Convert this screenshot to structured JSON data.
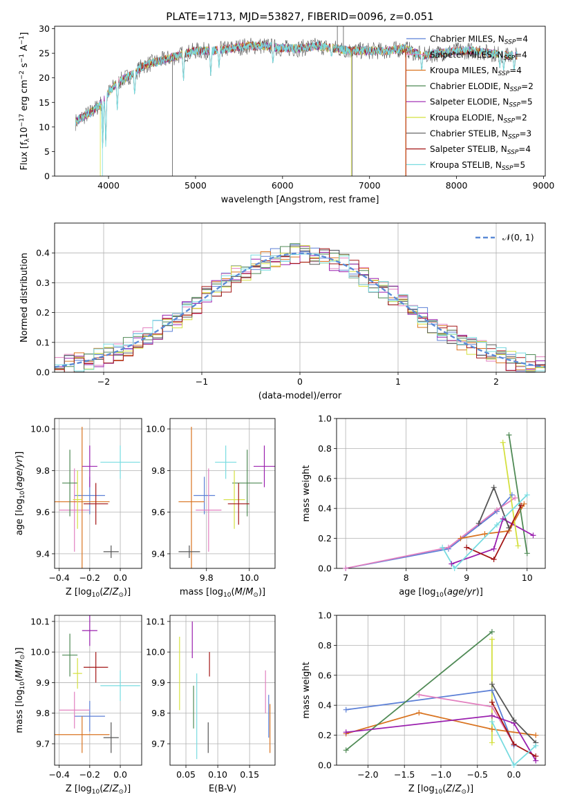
{
  "figure": {
    "title": "PLATE=1713, MJD=53827, FIBERID=0096, z=0.051"
  },
  "series_colors": {
    "Chabrier MILES": "#5b7fd6",
    "Salpeter MILES": "#e27fbf",
    "Kroupa MILES": "#d9731f",
    "Chabrier ELODIE": "#4f8a55",
    "Salpeter ELODIE": "#9a1fae",
    "Kroupa ELODIE": "#d4e03f",
    "Chabrier STELIB": "#555555",
    "Salpeter STELIB": "#a31515",
    "Kroupa STELIB": "#77dbe0"
  },
  "chart_data": [
    {
      "id": "spectrum",
      "type": "line",
      "title": "PLATE=1713, MJD=53827, FIBERID=0096, z=0.051",
      "xlabel": "wavelength [Angstrom, rest frame]",
      "ylabel": "Flux [f_λ 10^-17 erg cm^-2 s^-1 A^-1]",
      "xlim": [
        3380,
        9020
      ],
      "ylim": [
        0,
        30.5
      ],
      "xticks": [
        4000,
        5000,
        6000,
        7000,
        8000,
        9000
      ],
      "yticks": [
        0,
        5,
        10,
        15,
        20,
        25,
        30
      ],
      "grid": false,
      "legend_placement": "top-right",
      "legend": [
        {
          "label": "Chabrier MILES, N",
          "sub": "SSP",
          "tail": "=4",
          "series": "Chabrier MILES"
        },
        {
          "label": "Salpeter MILES, N",
          "sub": "SSP",
          "tail": "=4",
          "series": "Salpeter MILES"
        },
        {
          "label": "Kroupa MILES, N",
          "sub": "SSP",
          "tail": "=4",
          "series": "Kroupa MILES"
        },
        {
          "label": "Chabrier ELODIE, N",
          "sub": "SSP",
          "tail": "=2",
          "series": "Chabrier ELODIE"
        },
        {
          "label": "Salpeter ELODIE, N",
          "sub": "SSP",
          "tail": "=5",
          "series": "Salpeter ELODIE"
        },
        {
          "label": "Kroupa ELODIE, N",
          "sub": "SSP",
          "tail": "=2",
          "series": "Kroupa ELODIE"
        },
        {
          "label": "Chabrier STELIB, N",
          "sub": "SSP",
          "tail": "=3",
          "series": "Chabrier STELIB"
        },
        {
          "label": "Salpeter STELIB, N",
          "sub": "SSP",
          "tail": "=4",
          "series": "Salpeter STELIB"
        },
        {
          "label": "Kroupa STELIB, N",
          "sub": "SSP",
          "tail": "=5",
          "series": "Kroupa STELIB"
        }
      ],
      "continuum": [
        [
          3620,
          11
        ],
        [
          3700,
          12
        ],
        [
          3800,
          13
        ],
        [
          3900,
          14.5
        ],
        [
          4000,
          17
        ],
        [
          4100,
          19
        ],
        [
          4200,
          20
        ],
        [
          4300,
          21
        ],
        [
          4400,
          22.5
        ],
        [
          4600,
          23.5
        ],
        [
          4800,
          24.5
        ],
        [
          5000,
          25.5
        ],
        [
          5200,
          25.5
        ],
        [
          5400,
          26
        ],
        [
          5600,
          26.5
        ],
        [
          5800,
          26.5
        ],
        [
          6000,
          26
        ],
        [
          6200,
          26
        ],
        [
          6400,
          26.5
        ],
        [
          6600,
          26
        ],
        [
          6800,
          25.5
        ],
        [
          7000,
          25.5
        ],
        [
          7200,
          25.5
        ],
        [
          7400,
          26
        ],
        [
          7600,
          24.5
        ],
        [
          7800,
          25
        ],
        [
          8000,
          25.5
        ],
        [
          8200,
          25.5
        ],
        [
          8400,
          25
        ],
        [
          8600,
          24.5
        ],
        [
          8700,
          24.5
        ]
      ],
      "absorption_dips": [
        [
          3933,
          5
        ],
        [
          3968,
          6
        ],
        [
          4101,
          13
        ],
        [
          4300,
          16
        ],
        [
          4861,
          19
        ],
        [
          5175,
          20
        ],
        [
          5270,
          22
        ],
        [
          5890,
          22.5
        ],
        [
          6563,
          24
        ],
        [
          7600,
          21
        ],
        [
          8498,
          22
        ],
        [
          8542,
          21
        ],
        [
          8662,
          21
        ]
      ],
      "spikes": [
        {
          "series": "Kroupa ELODIE",
          "x": 3905,
          "y": 0
        },
        {
          "series": "Chabrier STELIB",
          "x": 4735,
          "y": 0
        },
        {
          "series": "Kroupa STELIB",
          "x": 3930,
          "y": 0
        },
        {
          "series": "Kroupa ELODIE",
          "x": 6790,
          "y": 0
        },
        {
          "series": "Chabrier STELIB",
          "x": 6800,
          "y": 0
        },
        {
          "series": "Salpeter STELIB",
          "x": 7420,
          "y": 0
        },
        {
          "series": "Kroupa MILES",
          "x": 7415,
          "y": 0
        },
        {
          "series": "Chabrier STELIB",
          "x": 6630,
          "y": 30.5
        },
        {
          "series": "Chabrier STELIB",
          "x": 6700,
          "y": 30.5
        }
      ]
    },
    {
      "id": "residual-hist",
      "type": "histogram",
      "xlabel": "(data-model)/error",
      "ylabel": "Normed distribution",
      "xlim": [
        -2.5,
        2.5
      ],
      "ylim": [
        0,
        0.5
      ],
      "xticks": [
        -2,
        -1,
        0,
        1,
        2
      ],
      "yticks": [
        0.0,
        0.1,
        0.2,
        0.3,
        0.4
      ],
      "grid": true,
      "bin_width": 0.1,
      "normal_curve": {
        "mu": 0,
        "sigma": 1,
        "label": "𝒩(0, 1)",
        "color": "#5b8ad6"
      },
      "legend_placement": "top-right",
      "noise_amplitude": 0.035
    },
    {
      "id": "age-vs-Z",
      "type": "errorbar",
      "xlabel": "Z [log10(Z/Z⊙)]",
      "ylabel": "age [log10(age/yr)]",
      "xlim": [
        -0.43,
        0.14
      ],
      "ylim": [
        9.33,
        10.05
      ],
      "xticks": [
        -0.4,
        -0.2,
        0.0
      ],
      "yticks": [
        9.4,
        9.6,
        9.8,
        10.0
      ],
      "grid": true,
      "points": [
        {
          "series": "Chabrier MILES",
          "x": -0.2,
          "xerr": 0.1,
          "y": 9.68,
          "yerr": 0.09
        },
        {
          "series": "Salpeter MILES",
          "x": -0.3,
          "xerr": 0.1,
          "y": 9.61,
          "yerr": 0.2
        },
        {
          "series": "Kroupa MILES",
          "x": -0.25,
          "xerr": 0.18,
          "y": 9.65,
          "yerr": 0.36
        },
        {
          "series": "Chabrier ELODIE",
          "x": -0.33,
          "xerr": 0.05,
          "y": 9.74,
          "yerr": 0.16
        },
        {
          "series": "Salpeter ELODIE",
          "x": -0.2,
          "xerr": 0.05,
          "y": 9.82,
          "yerr": 0.1
        },
        {
          "series": "Kroupa ELODIE",
          "x": -0.28,
          "xerr": 0.03,
          "y": 9.66,
          "yerr": 0.14
        },
        {
          "series": "Chabrier STELIB",
          "x": -0.06,
          "xerr": 0.05,
          "y": 9.41,
          "yerr": 0.03
        },
        {
          "series": "Salpeter STELIB",
          "x": -0.16,
          "xerr": 0.08,
          "y": 9.64,
          "yerr": 0.1
        },
        {
          "series": "Kroupa STELIB",
          "x": 0.0,
          "xerr": 0.13,
          "y": 9.84,
          "yerr": 0.08
        }
      ]
    },
    {
      "id": "age-vs-mass",
      "type": "errorbar",
      "xlabel": "mass [log10(M/M⊙)]",
      "xlim": [
        9.63,
        10.12
      ],
      "ylim": [
        9.33,
        10.05
      ],
      "xticks": [
        9.8,
        10.0
      ],
      "yticks": [
        9.4,
        9.6,
        9.8,
        10.0
      ],
      "grid": true,
      "points": [
        {
          "series": "Chabrier MILES",
          "x": 9.79,
          "xerr": 0.05,
          "y": 9.68,
          "yerr": 0.09
        },
        {
          "series": "Salpeter MILES",
          "x": 9.81,
          "xerr": 0.06,
          "y": 9.61,
          "yerr": 0.2
        },
        {
          "series": "Kroupa MILES",
          "x": 9.73,
          "xerr": 0.06,
          "y": 9.65,
          "yerr": 0.36
        },
        {
          "series": "Chabrier ELODIE",
          "x": 9.99,
          "xerr": 0.07,
          "y": 9.74,
          "yerr": 0.16
        },
        {
          "series": "Salpeter ELODIE",
          "x": 10.07,
          "xerr": 0.05,
          "y": 9.82,
          "yerr": 0.1
        },
        {
          "series": "Kroupa ELODIE",
          "x": 9.93,
          "xerr": 0.05,
          "y": 9.66,
          "yerr": 0.14
        },
        {
          "series": "Chabrier STELIB",
          "x": 9.72,
          "xerr": 0.05,
          "y": 9.41,
          "yerr": 0.03
        },
        {
          "series": "Salpeter STELIB",
          "x": 9.95,
          "xerr": 0.05,
          "y": 9.64,
          "yerr": 0.1
        },
        {
          "series": "Kroupa STELIB",
          "x": 9.89,
          "xerr": 0.05,
          "y": 9.84,
          "yerr": 0.08
        }
      ]
    },
    {
      "id": "weight-vs-age",
      "type": "line",
      "xlabel": "age [log10(age/yr)]",
      "ylabel": "mass weight",
      "xlim": [
        6.85,
        10.3
      ],
      "ylim": [
        0,
        1
      ],
      "xticks": [
        7,
        8,
        9,
        10
      ],
      "yticks": [
        0.0,
        0.2,
        0.4,
        0.6,
        0.8,
        1.0
      ],
      "grid": true,
      "series": [
        {
          "series": "Chabrier MILES",
          "points": [
            [
              7.0,
              0.0
            ],
            [
              8.7,
              0.13
            ],
            [
              9.5,
              0.38
            ],
            [
              9.75,
              0.49
            ]
          ]
        },
        {
          "series": "Salpeter MILES",
          "points": [
            [
              7.0,
              0.0
            ],
            [
              8.7,
              0.14
            ],
            [
              9.5,
              0.39
            ],
            [
              9.8,
              0.47
            ]
          ]
        },
        {
          "series": "Kroupa MILES",
          "points": [
            [
              8.9,
              0.2
            ],
            [
              9.3,
              0.23
            ],
            [
              9.7,
              0.25
            ],
            [
              9.95,
              0.43
            ]
          ]
        },
        {
          "series": "Chabrier ELODIE",
          "points": [
            [
              9.7,
              0.89
            ],
            [
              10.0,
              0.1
            ]
          ]
        },
        {
          "series": "Salpeter ELODIE",
          "points": [
            [
              8.75,
              0.03
            ],
            [
              9.45,
              0.13
            ],
            [
              9.6,
              0.33
            ],
            [
              10.1,
              0.22
            ]
          ]
        },
        {
          "series": "Kroupa ELODIE",
          "points": [
            [
              9.6,
              0.84
            ],
            [
              9.85,
              0.15
            ]
          ]
        },
        {
          "series": "Chabrier STELIB",
          "points": [
            [
              9.2,
              0.3
            ],
            [
              9.45,
              0.54
            ],
            [
              9.7,
              0.27
            ]
          ]
        },
        {
          "series": "Salpeter STELIB",
          "points": [
            [
              9.0,
              0.14
            ],
            [
              9.45,
              0.06
            ],
            [
              9.9,
              0.42
            ]
          ]
        },
        {
          "series": "Kroupa STELIB",
          "points": [
            [
              8.6,
              0.14
            ],
            [
              8.8,
              0.0
            ],
            [
              9.5,
              0.29
            ],
            [
              10.0,
              0.49
            ]
          ]
        }
      ]
    },
    {
      "id": "mass-vs-Z",
      "type": "errorbar",
      "xlabel": "Z [log10(Z/Z⊙)]",
      "ylabel": "mass [log10(M/M⊙)]",
      "xlim": [
        -0.43,
        0.14
      ],
      "ylim": [
        9.63,
        10.12
      ],
      "xticks": [
        -0.4,
        -0.2,
        0.0
      ],
      "yticks": [
        9.7,
        9.8,
        9.9,
        10.0,
        10.1
      ],
      "grid": true,
      "points": [
        {
          "series": "Chabrier MILES",
          "x": -0.2,
          "xerr": 0.1,
          "y": 9.79,
          "yerr": 0.05
        },
        {
          "series": "Salpeter MILES",
          "x": -0.3,
          "xerr": 0.1,
          "y": 9.81,
          "yerr": 0.06
        },
        {
          "series": "Kroupa MILES",
          "x": -0.25,
          "xerr": 0.18,
          "y": 9.73,
          "yerr": 0.06
        },
        {
          "series": "Chabrier ELODIE",
          "x": -0.33,
          "xerr": 0.05,
          "y": 9.99,
          "yerr": 0.07
        },
        {
          "series": "Salpeter ELODIE",
          "x": -0.2,
          "xerr": 0.05,
          "y": 10.07,
          "yerr": 0.05
        },
        {
          "series": "Kroupa ELODIE",
          "x": -0.28,
          "xerr": 0.03,
          "y": 9.93,
          "yerr": 0.05
        },
        {
          "series": "Chabrier STELIB",
          "x": -0.06,
          "xerr": 0.05,
          "y": 9.72,
          "yerr": 0.05
        },
        {
          "series": "Salpeter STELIB",
          "x": -0.16,
          "xerr": 0.08,
          "y": 9.95,
          "yerr": 0.05
        },
        {
          "series": "Kroupa STELIB",
          "x": 0.0,
          "xerr": 0.13,
          "y": 9.89,
          "yerr": 0.05
        }
      ]
    },
    {
      "id": "mass-vs-EBV",
      "type": "errorbar",
      "xlabel": "E(B-V)",
      "xlim": [
        0.025,
        0.19
      ],
      "ylim": [
        9.63,
        10.12
      ],
      "xticks": [
        0.05,
        0.1,
        0.15
      ],
      "xtick_labels": [
        "0.05",
        "0.10",
        "0.15"
      ],
      "yticks": [
        9.7,
        9.8,
        9.9,
        10.0,
        10.1
      ],
      "grid": true,
      "points": [
        {
          "series": "Chabrier MILES",
          "x": 0.18,
          "xerr": 0.0,
          "y": 9.79,
          "yerr": 0.07
        },
        {
          "series": "Salpeter MILES",
          "x": 0.175,
          "xerr": 0.0,
          "y": 9.87,
          "yerr": 0.07
        },
        {
          "series": "Kroupa MILES",
          "x": 0.182,
          "xerr": 0.0,
          "y": 9.75,
          "yerr": 0.08
        },
        {
          "series": "Chabrier ELODIE",
          "x": 0.062,
          "xerr": 0.0,
          "y": 9.82,
          "yerr": 0.07
        },
        {
          "series": "Salpeter ELODIE",
          "x": 0.06,
          "xerr": 0.0,
          "y": 10.04,
          "yerr": 0.06
        },
        {
          "series": "Kroupa ELODIE",
          "x": 0.04,
          "xerr": 0.0,
          "y": 9.93,
          "yerr": 0.12
        },
        {
          "series": "Chabrier STELIB",
          "x": 0.085,
          "xerr": 0.0,
          "y": 9.72,
          "yerr": 0.05
        },
        {
          "series": "Salpeter STELIB",
          "x": 0.087,
          "xerr": 0.0,
          "y": 9.96,
          "yerr": 0.04
        },
        {
          "series": "Kroupa STELIB",
          "x": 0.067,
          "xerr": 0.0,
          "y": 9.79,
          "yerr": 0.14
        }
      ]
    },
    {
      "id": "weight-vs-Z",
      "type": "line",
      "xlabel": "Z [log10(Z/Z⊙)]",
      "ylabel": "mass weight",
      "xlim": [
        -2.43,
        0.43
      ],
      "ylim": [
        0,
        1
      ],
      "xticks": [
        -2.0,
        -1.5,
        -1.0,
        -0.5,
        0.0
      ],
      "yticks": [
        0.0,
        0.2,
        0.4,
        0.6,
        0.8,
        1.0
      ],
      "grid": true,
      "series": [
        {
          "series": "Chabrier MILES",
          "points": [
            [
              -2.3,
              0.37
            ],
            [
              -0.3,
              0.5
            ],
            [
              0.0,
              0.13
            ]
          ]
        },
        {
          "series": "Salpeter MILES",
          "points": [
            [
              -1.3,
              0.47
            ],
            [
              -0.3,
              0.39
            ],
            [
              0.0,
              0.14
            ]
          ]
        },
        {
          "series": "Kroupa MILES",
          "points": [
            [
              -2.3,
              0.21
            ],
            [
              -1.3,
              0.35
            ],
            [
              -0.3,
              0.24
            ],
            [
              0.3,
              0.2
            ]
          ]
        },
        {
          "series": "Chabrier ELODIE",
          "points": [
            [
              -2.3,
              0.1
            ],
            [
              -0.3,
              0.89
            ]
          ]
        },
        {
          "series": "Salpeter ELODIE",
          "points": [
            [
              -2.3,
              0.22
            ],
            [
              -0.3,
              0.33
            ],
            [
              0.0,
              0.28
            ],
            [
              0.3,
              0.03
            ]
          ]
        },
        {
          "series": "Kroupa ELODIE",
          "points": [
            [
              -0.3,
              0.84
            ],
            [
              -0.3,
              0.15
            ]
          ]
        },
        {
          "series": "Chabrier STELIB",
          "points": [
            [
              -0.3,
              0.54
            ],
            [
              0.0,
              0.3
            ],
            [
              0.3,
              0.15
            ]
          ]
        },
        {
          "series": "Salpeter STELIB",
          "points": [
            [
              -0.3,
              0.42
            ],
            [
              0.0,
              0.14
            ],
            [
              0.3,
              0.06
            ]
          ]
        },
        {
          "series": "Kroupa STELIB",
          "points": [
            [
              -0.3,
              0.29
            ],
            [
              0.0,
              0.0
            ],
            [
              0.3,
              0.13
            ]
          ]
        }
      ]
    }
  ]
}
